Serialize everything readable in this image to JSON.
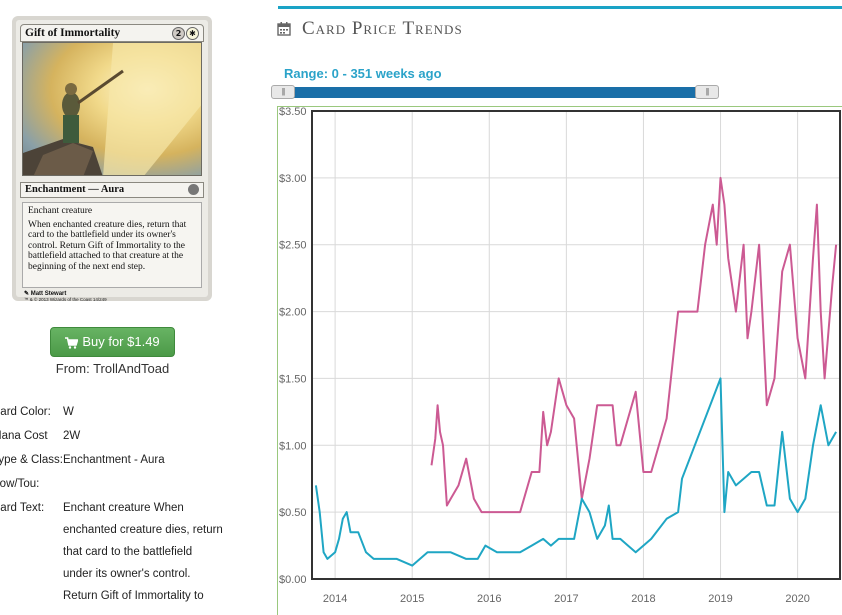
{
  "card": {
    "name": "Gift of Immortality",
    "cost_generic": "2",
    "cost_white": "✱",
    "type_line": "Enchantment — Aura",
    "text_line1": "Enchant creature",
    "text_line2": "When enchanted creature dies, return that card to the battlefield under its owner's control. Return Gift of Immortality to the battlefield attached to that creature at the beginning of the next end step.",
    "artist": "Matt Stewart",
    "copyright": "™ & © 2013 Wizards of the Coast 14/249"
  },
  "buy": {
    "label": "Buy for $1.49",
    "from": "From: TrollAndToad"
  },
  "details": {
    "color_label": "Card Color:",
    "color_value": "W",
    "mana_label": "Mana Cost",
    "mana_value": "2W",
    "type_label": "Type & Class:",
    "type_value": "Enchantment - Aura",
    "pow_label": "Pow/Tou:",
    "pow_value": "",
    "text_label": "Card Text:",
    "text_value_lines": [
      "Enchant creature When",
      "enchanted creature dies, return",
      "that card to the battlefield",
      "under its owner's control.",
      "Return Gift of Immortality to"
    ]
  },
  "panel": {
    "title": "Card Price Trends",
    "range_label": "Range: 0 - 351 weeks ago"
  },
  "colors": {
    "accent": "#1aa3c6",
    "buy_green": "#5aa656",
    "series_foil": "#cc5a93",
    "series_regular": "#1fa6c4"
  },
  "chart_data": {
    "type": "line",
    "title": "",
    "xlabel": "",
    "ylabel": "",
    "ylim": [
      0,
      3.5
    ],
    "xlim": [
      2013.7,
      2020.55
    ],
    "y_ticks": [
      "$0.00",
      "$0.50",
      "$1.00",
      "$1.50",
      "$2.00",
      "$2.50",
      "$3.00",
      "$3.50"
    ],
    "y_tick_values": [
      0,
      0.5,
      1.0,
      1.5,
      2.0,
      2.5,
      3.0,
      3.5
    ],
    "x_ticks": [
      "2014",
      "2015",
      "2016",
      "2017",
      "2018",
      "2019",
      "2020"
    ],
    "x_tick_values": [
      2014,
      2015,
      2016,
      2017,
      2018,
      2019,
      2020
    ],
    "grid": true,
    "series": [
      {
        "name": "",
        "color": "#cc5a93",
        "points": [
          [
            2015.25,
            0.85
          ],
          [
            2015.3,
            1.05
          ],
          [
            2015.33,
            1.3
          ],
          [
            2015.36,
            1.1
          ],
          [
            2015.4,
            1.0
          ],
          [
            2015.45,
            0.55
          ],
          [
            2015.5,
            0.6
          ],
          [
            2015.6,
            0.7
          ],
          [
            2015.7,
            0.9
          ],
          [
            2015.8,
            0.6
          ],
          [
            2015.9,
            0.5
          ],
          [
            2016.2,
            0.5
          ],
          [
            2016.4,
            0.5
          ],
          [
            2016.55,
            0.8
          ],
          [
            2016.65,
            0.8
          ],
          [
            2016.7,
            1.25
          ],
          [
            2016.75,
            1.0
          ],
          [
            2016.8,
            1.1
          ],
          [
            2016.9,
            1.5
          ],
          [
            2017.0,
            1.3
          ],
          [
            2017.1,
            1.2
          ],
          [
            2017.2,
            0.6
          ],
          [
            2017.3,
            0.9
          ],
          [
            2017.4,
            1.3
          ],
          [
            2017.5,
            1.3
          ],
          [
            2017.6,
            1.3
          ],
          [
            2017.65,
            1.0
          ],
          [
            2017.7,
            1.0
          ],
          [
            2017.8,
            1.2
          ],
          [
            2017.9,
            1.4
          ],
          [
            2018.0,
            0.8
          ],
          [
            2018.1,
            0.8
          ],
          [
            2018.3,
            1.2
          ],
          [
            2018.45,
            2.0
          ],
          [
            2018.6,
            2.0
          ],
          [
            2018.7,
            2.0
          ],
          [
            2018.8,
            2.5
          ],
          [
            2018.9,
            2.8
          ],
          [
            2018.95,
            2.5
          ],
          [
            2019.0,
            3.0
          ],
          [
            2019.05,
            2.8
          ],
          [
            2019.1,
            2.4
          ],
          [
            2019.2,
            2.0
          ],
          [
            2019.3,
            2.5
          ],
          [
            2019.35,
            1.8
          ],
          [
            2019.4,
            2.0
          ],
          [
            2019.5,
            2.5
          ],
          [
            2019.6,
            1.3
          ],
          [
            2019.7,
            1.5
          ],
          [
            2019.8,
            2.3
          ],
          [
            2019.9,
            2.5
          ],
          [
            2020.0,
            1.8
          ],
          [
            2020.1,
            1.5
          ],
          [
            2020.2,
            2.4
          ],
          [
            2020.25,
            2.8
          ],
          [
            2020.3,
            2.0
          ],
          [
            2020.35,
            1.5
          ],
          [
            2020.45,
            2.2
          ],
          [
            2020.5,
            2.5
          ]
        ]
      },
      {
        "name": "",
        "color": "#1fa6c4",
        "points": [
          [
            2013.75,
            0.7
          ],
          [
            2013.8,
            0.5
          ],
          [
            2013.85,
            0.2
          ],
          [
            2013.9,
            0.15
          ],
          [
            2014.0,
            0.2
          ],
          [
            2014.05,
            0.3
          ],
          [
            2014.1,
            0.45
          ],
          [
            2014.15,
            0.5
          ],
          [
            2014.2,
            0.35
          ],
          [
            2014.3,
            0.35
          ],
          [
            2014.4,
            0.2
          ],
          [
            2014.5,
            0.15
          ],
          [
            2014.7,
            0.15
          ],
          [
            2014.8,
            0.15
          ],
          [
            2015.0,
            0.1
          ],
          [
            2015.2,
            0.2
          ],
          [
            2015.35,
            0.2
          ],
          [
            2015.5,
            0.2
          ],
          [
            2015.7,
            0.15
          ],
          [
            2015.85,
            0.15
          ],
          [
            2015.95,
            0.25
          ],
          [
            2016.1,
            0.2
          ],
          [
            2016.3,
            0.2
          ],
          [
            2016.4,
            0.2
          ],
          [
            2016.55,
            0.25
          ],
          [
            2016.7,
            0.3
          ],
          [
            2016.8,
            0.25
          ],
          [
            2016.9,
            0.3
          ],
          [
            2017.0,
            0.3
          ],
          [
            2017.1,
            0.3
          ],
          [
            2017.2,
            0.6
          ],
          [
            2017.3,
            0.5
          ],
          [
            2017.4,
            0.3
          ],
          [
            2017.5,
            0.4
          ],
          [
            2017.55,
            0.55
          ],
          [
            2017.6,
            0.3
          ],
          [
            2017.7,
            0.3
          ],
          [
            2017.8,
            0.25
          ],
          [
            2017.9,
            0.2
          ],
          [
            2018.0,
            0.25
          ],
          [
            2018.1,
            0.3
          ],
          [
            2018.3,
            0.45
          ],
          [
            2018.45,
            0.5
          ],
          [
            2018.5,
            0.75
          ],
          [
            2019.0,
            1.5
          ],
          [
            2019.05,
            0.5
          ],
          [
            2019.1,
            0.8
          ],
          [
            2019.2,
            0.7
          ],
          [
            2019.3,
            0.75
          ],
          [
            2019.4,
            0.8
          ],
          [
            2019.5,
            0.8
          ],
          [
            2019.6,
            0.55
          ],
          [
            2019.7,
            0.55
          ],
          [
            2019.8,
            1.1
          ],
          [
            2019.9,
            0.6
          ],
          [
            2020.0,
            0.5
          ],
          [
            2020.1,
            0.6
          ],
          [
            2020.2,
            1.0
          ],
          [
            2020.3,
            1.3
          ],
          [
            2020.4,
            1.0
          ],
          [
            2020.5,
            1.1
          ]
        ]
      }
    ]
  }
}
